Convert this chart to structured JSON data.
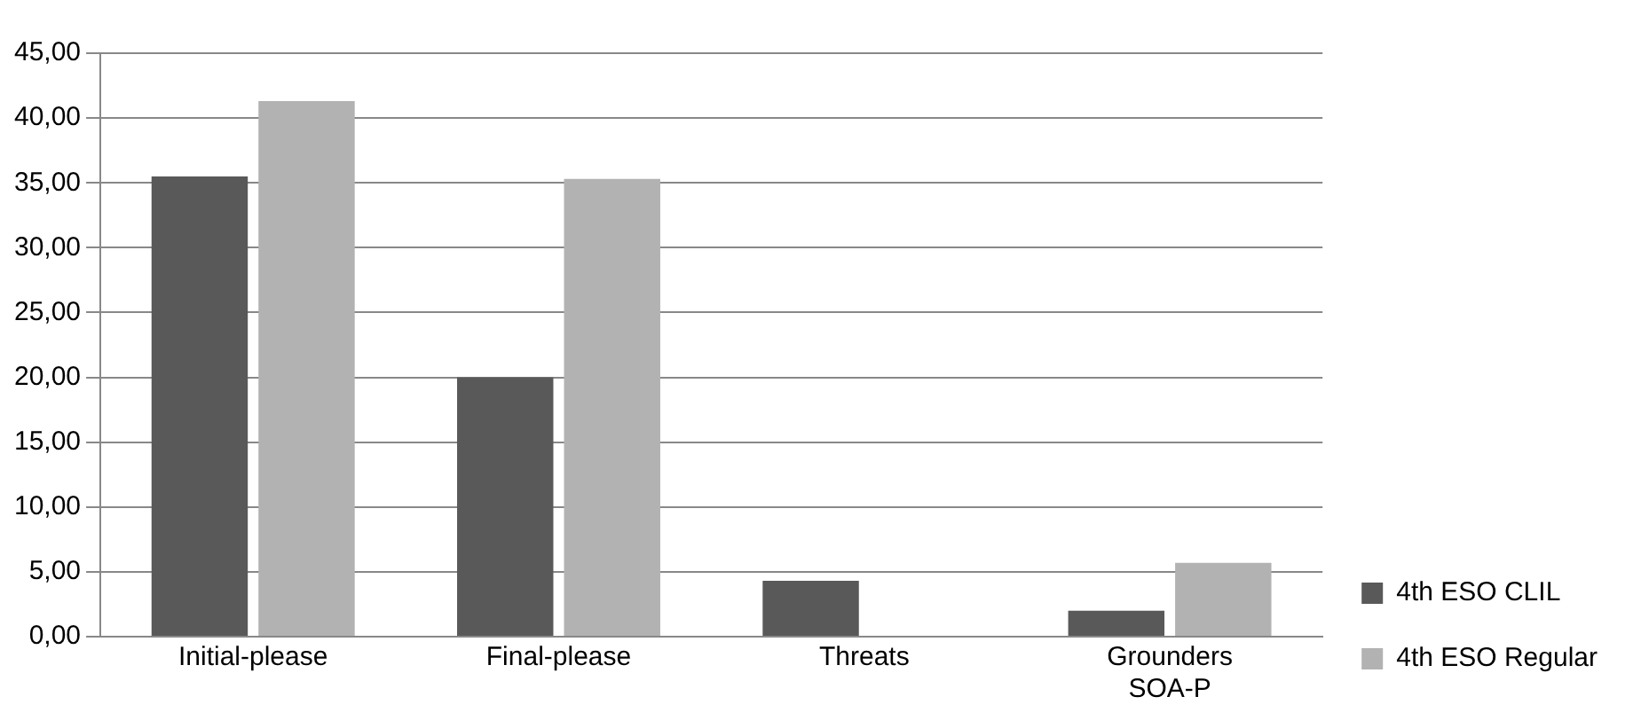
{
  "chart_data": {
    "type": "bar",
    "categories": [
      "Initial-please",
      "Final-please",
      "Threats",
      "Grounders SOA-P"
    ],
    "series": [
      {
        "name": "4th ESO CLIL",
        "color": "#595959",
        "values": [
          35.5,
          20.0,
          4.3,
          2.0
        ]
      },
      {
        "name": "4th ESO Regular",
        "color": "#b2b2b2",
        "values": [
          41.3,
          35.3,
          0,
          5.7
        ]
      }
    ],
    "ylim": [
      0,
      45
    ],
    "yticks": [
      {
        "value": 0,
        "label": "0,00"
      },
      {
        "value": 5,
        "label": "5,00"
      },
      {
        "value": 10,
        "label": "10,00"
      },
      {
        "value": 15,
        "label": "15,00"
      },
      {
        "value": 20,
        "label": "20,00"
      },
      {
        "value": 25,
        "label": "25,00"
      },
      {
        "value": 30,
        "label": "30,00"
      },
      {
        "value": 35,
        "label": "35,00"
      },
      {
        "value": 40,
        "label": "40,00"
      },
      {
        "value": 45,
        "label": "45,00"
      }
    ],
    "grid": "y",
    "legend": "right"
  }
}
